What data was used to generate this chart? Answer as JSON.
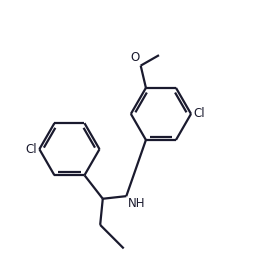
{
  "background_color": "#ffffff",
  "line_color": "#1a1a2e",
  "line_width": 1.6,
  "font_size": 8.5,
  "figsize": [
    2.67,
    2.67
  ],
  "dpi": 100,
  "xlim": [
    0.0,
    1.0
  ],
  "ylim": [
    0.05,
    1.0
  ]
}
